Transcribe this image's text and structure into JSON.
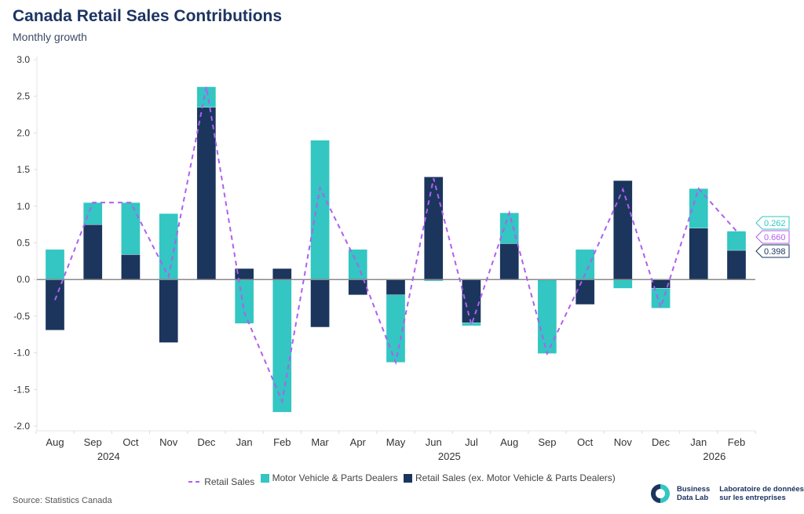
{
  "title": "Canada Retail Sales Contributions",
  "subtitle": "Monthly growth",
  "source": "Source: Statistics Canada",
  "logo": {
    "icon": "business-data-lab-logo-icon",
    "en_line1": "Business",
    "en_line2": "Data Lab",
    "fr_line1": "Laboratoire de données",
    "fr_line2": "sur les entreprises"
  },
  "colors": {
    "retail_line": "#b05ff0",
    "motor": "#33c6c2",
    "ex_motor": "#1b355d",
    "title": "#1d3461"
  },
  "chart_data": {
    "type": "bar",
    "stacked": true,
    "title": "Canada Retail Sales Contributions",
    "subtitle": "Monthly growth",
    "xlabel": "",
    "ylabel": "",
    "ylim": [
      -2.0,
      3.0
    ],
    "yticks": [
      "3.0",
      "2.5",
      "2.0",
      "1.5",
      "1.0",
      "0.5",
      "0.0",
      "-0.5",
      "-1.0",
      "-1.5",
      "-2.0"
    ],
    "ytick_values": [
      3.0,
      2.5,
      2.0,
      1.5,
      1.0,
      0.5,
      0.0,
      -0.5,
      -1.0,
      -1.5,
      -2.0
    ],
    "grid": false,
    "legend_position": "bottom",
    "categories": [
      "Aug",
      "Sep",
      "Oct",
      "Nov",
      "Dec",
      "Jan",
      "Feb",
      "Mar",
      "Apr",
      "May",
      "Jun",
      "Jul",
      "Aug",
      "Sep",
      "Oct",
      "Nov",
      "Dec",
      "Jan",
      "Feb"
    ],
    "year_labels": [
      {
        "label": "2024",
        "after_index": 1
      },
      {
        "label": "2025",
        "after_index": 10
      },
      {
        "label": "2026",
        "after_index": 17
      }
    ],
    "series": [
      {
        "name": "Retail Sales",
        "type": "line",
        "style": "dashed",
        "values": [
          -0.28,
          1.05,
          1.05,
          0.04,
          2.63,
          -0.45,
          -1.66,
          1.25,
          0.2,
          -1.13,
          1.38,
          -0.62,
          0.91,
          -1.01,
          0.07,
          1.23,
          -0.38,
          1.24,
          0.66
        ]
      },
      {
        "name": "Motor Vehicle & Parts Dealers",
        "type": "bar",
        "values": [
          0.41,
          0.3,
          0.71,
          0.9,
          0.28,
          -0.6,
          -1.81,
          1.9,
          0.41,
          -0.92,
          -0.02,
          -0.04,
          0.42,
          -1.01,
          0.41,
          -0.12,
          -0.27,
          0.54,
          0.262
        ]
      },
      {
        "name": "Retail Sales (ex. Motor Vehicle & Parts Dealers)",
        "type": "bar",
        "values": [
          -0.69,
          0.75,
          0.34,
          -0.86,
          2.35,
          0.15,
          0.15,
          -0.65,
          -0.21,
          -0.21,
          1.4,
          -0.59,
          0.49,
          0.0,
          -0.34,
          1.35,
          -0.12,
          0.7,
          0.398
        ]
      }
    ],
    "end_labels": [
      "0.262",
      "0.660",
      "0.398"
    ]
  },
  "legend": [
    {
      "label": "Retail Sales"
    },
    {
      "label": "Motor Vehicle & Parts Dealers"
    },
    {
      "label": "Retail Sales (ex. Motor Vehicle & Parts Dealers)"
    }
  ]
}
